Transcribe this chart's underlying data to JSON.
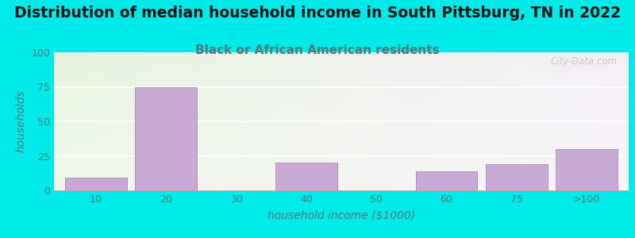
{
  "title": "Distribution of median household income in South Pittsburg, TN in 2022",
  "subtitle": "Black or African American residents",
  "xlabel": "household income ($1000)",
  "ylabel": "households",
  "categories": [
    "10",
    "20",
    "30",
    "40",
    "50",
    "60",
    "75",
    ">100"
  ],
  "values": [
    9,
    75,
    0,
    20,
    0,
    14,
    19,
    30
  ],
  "bar_color": "#c9aad4",
  "bar_edgecolor": "#b090c0",
  "bg_outer": "#00eaea",
  "ylim": [
    0,
    100
  ],
  "yticks": [
    0,
    25,
    50,
    75,
    100
  ],
  "title_fontsize": 13.5,
  "subtitle_fontsize": 11,
  "axis_label_fontsize": 10,
  "tick_fontsize": 9,
  "watermark_text": "City-Data.com",
  "title_color": "#111111",
  "subtitle_color": "#557777",
  "ylabel_color": "#557777",
  "xlabel_color": "#557777",
  "tick_color": "#557777"
}
